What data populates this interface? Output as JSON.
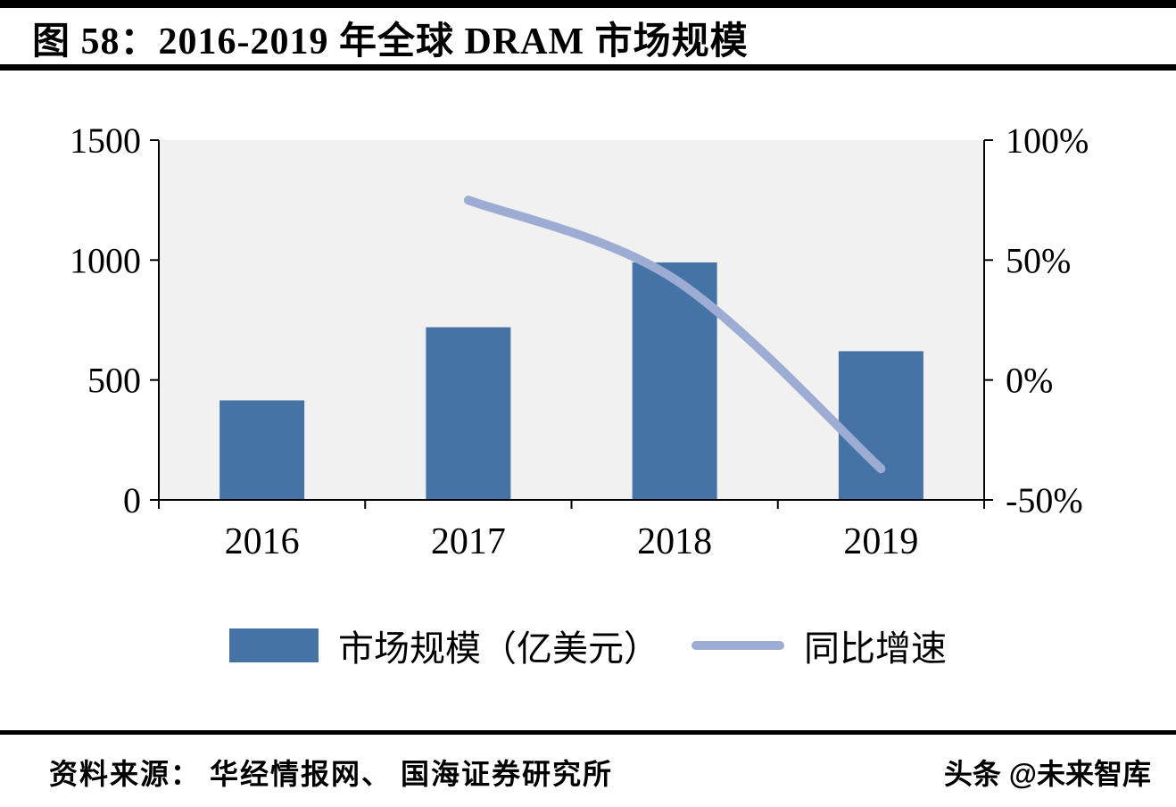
{
  "header": {
    "title": "图 58：2016-2019 年全球 DRAM 市场规模"
  },
  "chart_data": {
    "type": "bar+line",
    "title": "图 58：2016-2019 年全球 DRAM 市场规模",
    "categories": [
      "2016",
      "2017",
      "2018",
      "2019"
    ],
    "series": [
      {
        "name": "市场规模（亿美元）",
        "type": "bar",
        "axis": "left",
        "color": "#4573a5",
        "values": [
          415,
          720,
          990,
          620
        ]
      },
      {
        "name": "同比增速",
        "type": "line",
        "axis": "right",
        "color": "#9dacd2",
        "values": [
          null,
          75,
          42,
          -37
        ]
      }
    ],
    "left_axis": {
      "min": 0,
      "max": 1500,
      "tick_values": [
        1500,
        1000,
        500,
        0
      ],
      "ticks": [
        "1500",
        "1000",
        "500",
        "0"
      ]
    },
    "right_axis": {
      "min": -50,
      "max": 100,
      "tick_values": [
        100,
        50,
        0,
        -50
      ],
      "ticks": [
        "100%",
        "50%",
        "0%",
        "-50%"
      ]
    },
    "legend_position": "bottom",
    "grid": false,
    "plot_background": "#f1f1f1"
  },
  "footer": {
    "source": "资料来源： 华经情报网、 国海证券研究所",
    "watermark": "头条 @未来智库"
  }
}
